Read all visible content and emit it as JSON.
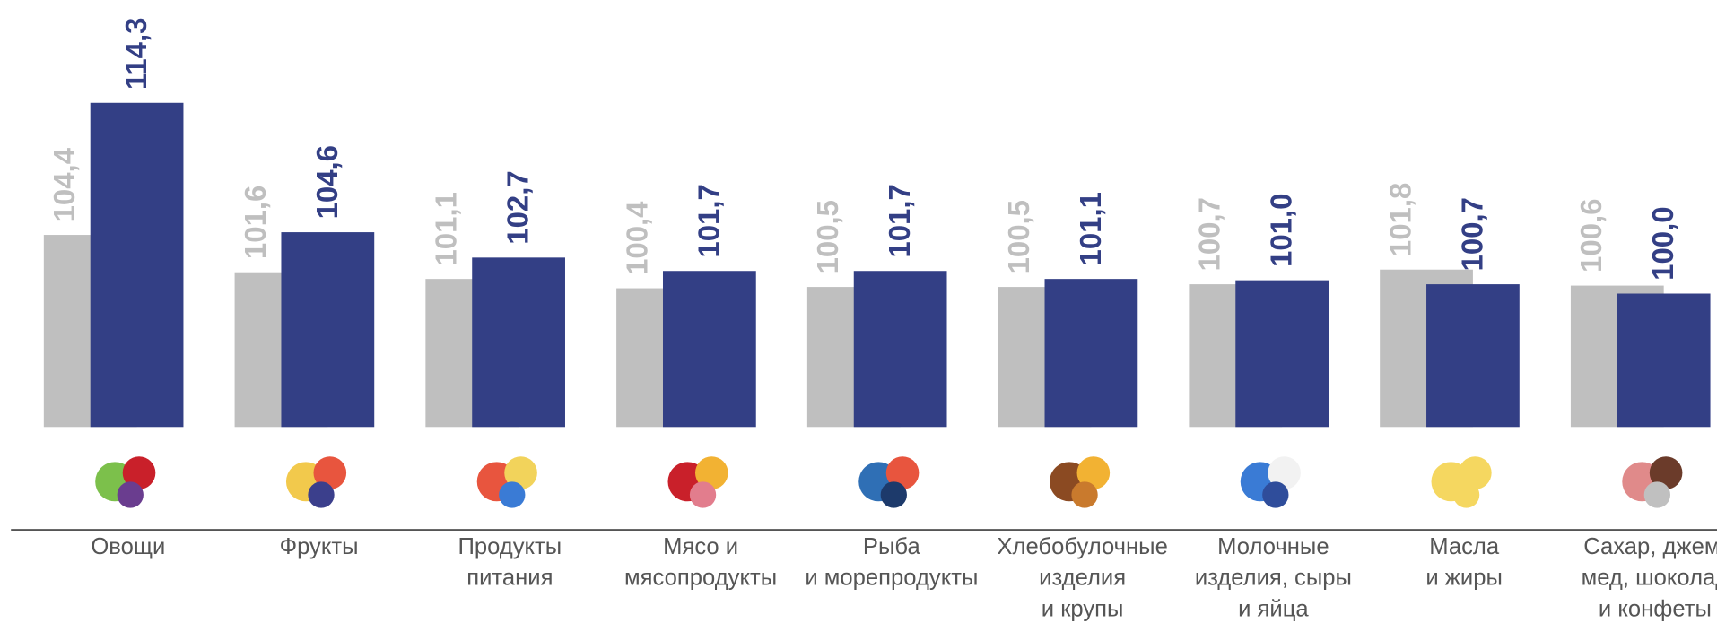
{
  "chart_data": {
    "type": "bar",
    "categories": [
      [
        "Овощи"
      ],
      [
        "Фрукты"
      ],
      [
        "Продукты",
        "питания"
      ],
      [
        "Мясо и",
        "мясопродукты"
      ],
      [
        "Рыба",
        "и морепродукты"
      ],
      [
        "Хлебобулочные",
        "изделия",
        "и крупы"
      ],
      [
        "Молочные",
        "изделия, сыры",
        "и яйца"
      ],
      [
        "Масла",
        "и жиры"
      ],
      [
        "Сахар, джем,",
        "мед, шоколад",
        "и конфеты"
      ]
    ],
    "series": [
      {
        "color": "#bfbfbf",
        "values": [
          104.4,
          101.6,
          101.1,
          100.4,
          100.5,
          100.5,
          100.7,
          101.8,
          100.6
        ],
        "value_labels": [
          "104,4",
          "101,6",
          "101,1",
          "100,4",
          "100,5",
          "100,5",
          "100,7",
          "101,8",
          "100,6"
        ]
      },
      {
        "color": "#333f85",
        "values": [
          114.3,
          104.6,
          102.7,
          101.7,
          101.7,
          101.1,
          101.0,
          100.7,
          100.0
        ],
        "value_labels": [
          "114,3",
          "104,6",
          "102,7",
          "101,7",
          "101,7",
          "101,1",
          "101,0",
          "100,7",
          "100,0"
        ]
      }
    ],
    "ylim": [
      90,
      122
    ]
  }
}
